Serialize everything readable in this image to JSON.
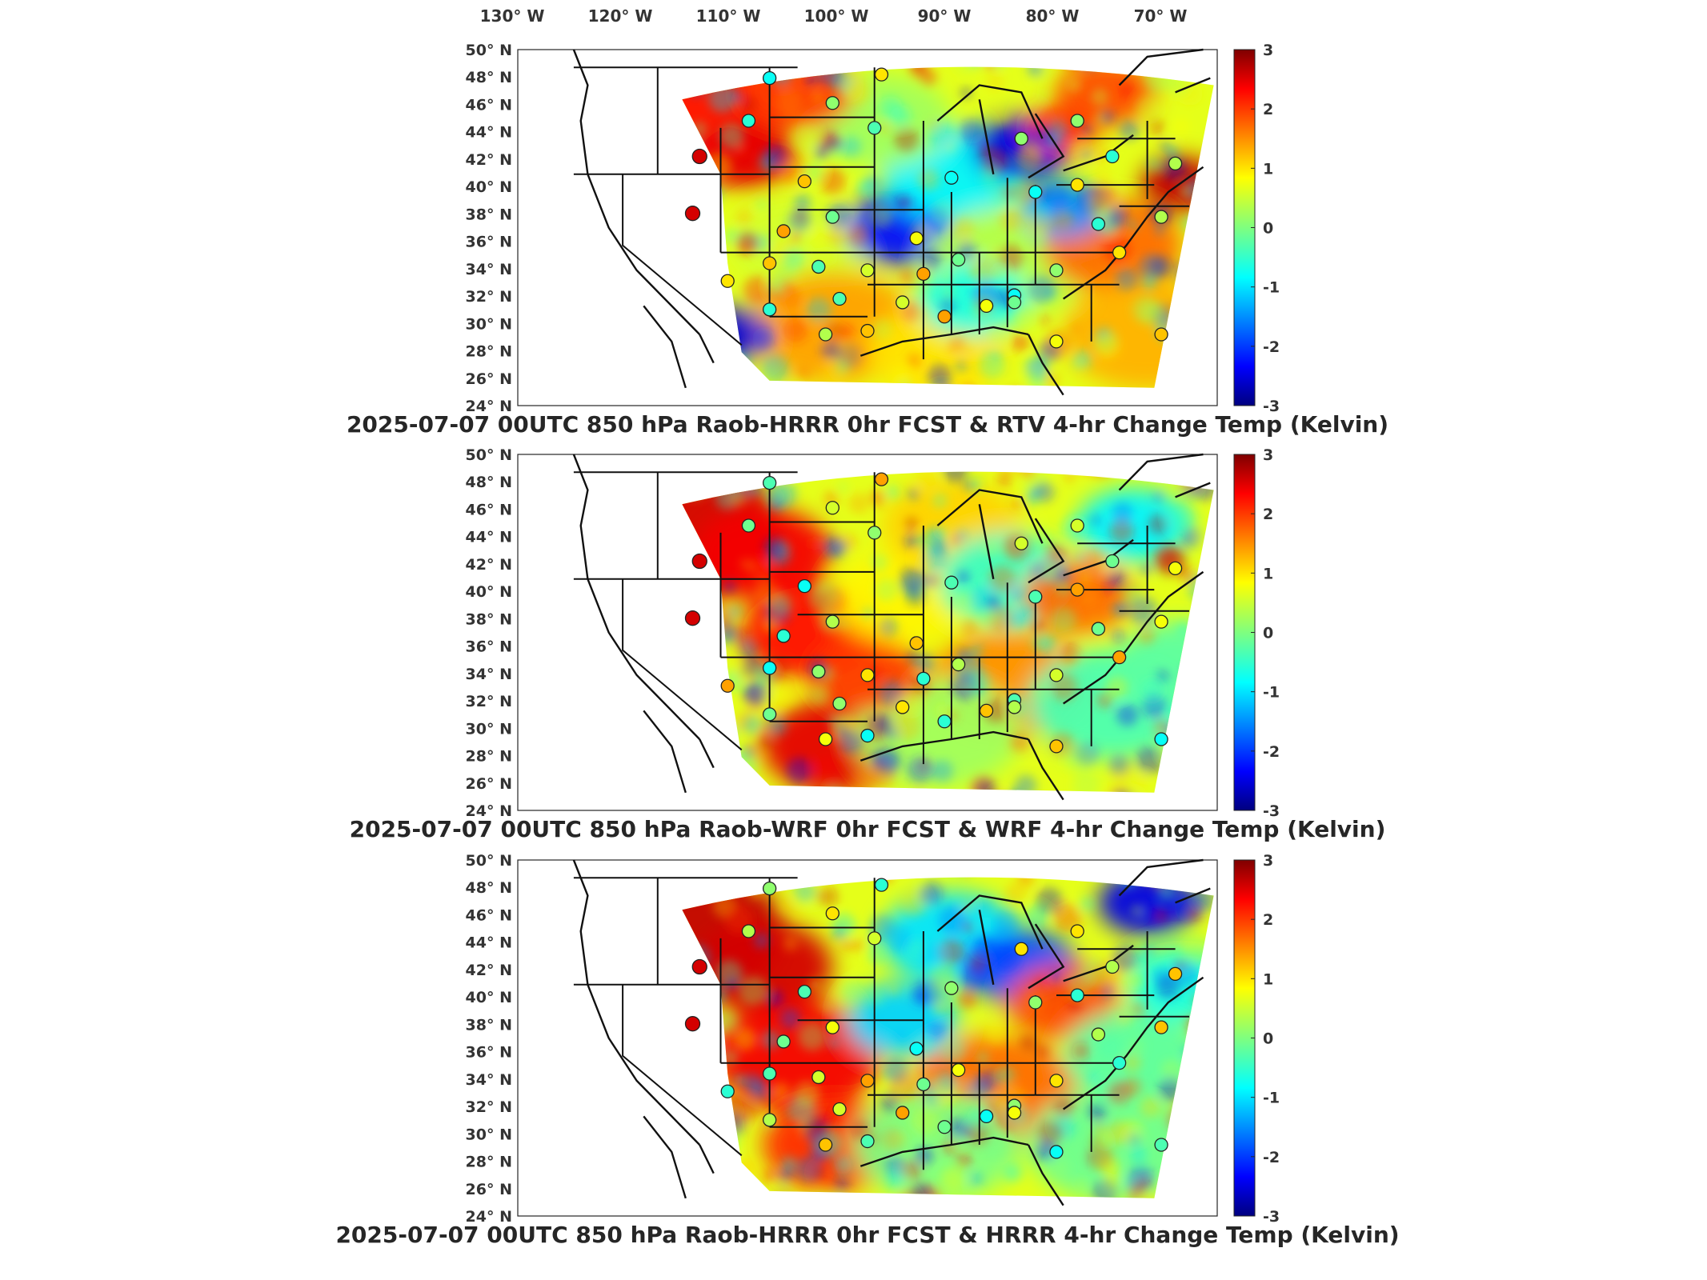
{
  "figure": {
    "lon_labels": [
      "130° W",
      "120° W",
      "110° W",
      "100° W",
      "90° W",
      "80° W",
      "70° W"
    ],
    "lat_labels": [
      "50° N",
      "48° N",
      "46° N",
      "44° N",
      "42° N",
      "40° N",
      "38° N",
      "36° N",
      "34° N",
      "32° N",
      "30° N",
      "28° N",
      "26° N",
      "24° N"
    ],
    "colorbar_ticks": [
      "3",
      "2",
      "1",
      "0",
      "-1",
      "-2",
      "-3"
    ],
    "colorbar_range": [
      -3,
      3
    ],
    "colormap": "jet",
    "colormap_stops": [
      "#00007f",
      "#0000ff",
      "#007fff",
      "#00ffff",
      "#7fff7f",
      "#ffff00",
      "#ff7f00",
      "#ff0000",
      "#7f0000"
    ],
    "panels": [
      {
        "title": "2025-07-07 00UTC 850 hPa Raob-HRRR 0hr FCST & RTV 4-hr Change Temp (Kelvin)",
        "scheme": "rtv"
      },
      {
        "title": "2025-07-07 00UTC 850 hPa Raob-WRF 0hr FCST & WRF 4-hr Change Temp (Kelvin)",
        "scheme": "wrf"
      },
      {
        "title": "2025-07-07 00UTC 850 hPa Raob-HRRR 0hr FCST & HRRR 4-hr Change Temp (Kelvin)",
        "scheme": "hrrr"
      }
    ]
  }
}
